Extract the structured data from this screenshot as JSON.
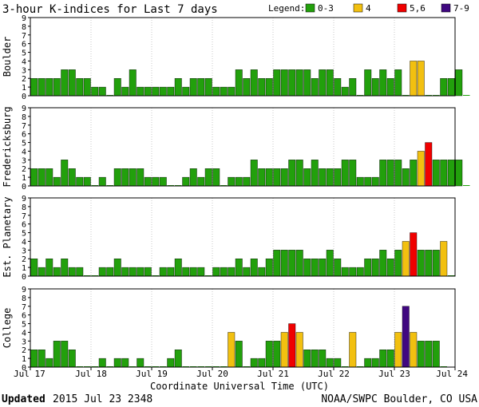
{
  "header": {
    "title": "3-hour K-indices for Last 7 days",
    "legend_label": "Legend:",
    "legend": [
      {
        "label": "0-3",
        "color": "#22a00c"
      },
      {
        "label": "4",
        "color": "#f2c010"
      },
      {
        "label": "5,6",
        "color": "#f00000"
      },
      {
        "label": "7-9",
        "color": "#400880"
      }
    ]
  },
  "footer": {
    "updated_label": "Updated",
    "updated_value": "2015 Jul 23 2348",
    "source": "NOAA/SWPC Boulder, CO USA"
  },
  "chart_data": {
    "type": "bar",
    "xlabel": "Coordinate Universal Time (UTC)",
    "x_ticks": [
      "Jul 17",
      "Jul 18",
      "Jul 19",
      "Jul 20",
      "Jul 21",
      "Jul 22",
      "Jul 23",
      "Jul 24"
    ],
    "y_ticks": [
      "0",
      "1",
      "2",
      "3",
      "4",
      "5",
      "6",
      "7",
      "8",
      "9"
    ],
    "ylim": [
      0,
      9
    ],
    "bars_per_day": 8,
    "color_rule": {
      "0-3": "#22a00c",
      "4": "#f2c010",
      "5,6": "#f00000",
      "7-9": "#400880"
    },
    "panels": [
      {
        "name": "Boulder",
        "values": [
          2,
          2,
          2,
          2,
          3,
          3,
          2,
          2,
          1,
          1,
          0,
          2,
          1,
          3,
          1,
          1,
          1,
          1,
          1,
          2,
          1,
          2,
          2,
          2,
          1,
          1,
          1,
          3,
          2,
          3,
          2,
          2,
          3,
          3,
          3,
          3,
          3,
          2,
          3,
          3,
          2,
          1,
          2,
          0,
          3,
          2,
          3,
          2,
          3,
          0,
          4,
          4,
          0,
          0,
          2,
          2,
          3,
          0
        ]
      },
      {
        "name": "Fredericksburg",
        "values": [
          2,
          2,
          2,
          1,
          3,
          2,
          1,
          1,
          0,
          1,
          0,
          2,
          2,
          2,
          2,
          1,
          1,
          1,
          0,
          0,
          1,
          2,
          1,
          2,
          2,
          0,
          1,
          1,
          1,
          3,
          2,
          2,
          2,
          2,
          3,
          3,
          2,
          3,
          2,
          2,
          2,
          3,
          3,
          1,
          1,
          1,
          3,
          3,
          3,
          2,
          3,
          4,
          5,
          3,
          3,
          3,
          3,
          0
        ]
      },
      {
        "name": "Est. Planetary",
        "values": [
          2,
          1,
          2,
          1,
          2,
          1,
          1,
          0,
          0,
          1,
          1,
          2,
          1,
          1,
          1,
          1,
          0,
          1,
          1,
          2,
          1,
          1,
          1,
          0,
          1,
          1,
          1,
          2,
          1,
          2,
          1,
          2,
          3,
          3,
          3,
          3,
          2,
          2,
          2,
          3,
          2,
          1,
          1,
          1,
          2,
          2,
          3,
          2,
          3,
          4,
          5,
          3,
          3,
          3,
          4,
          0
        ]
      },
      {
        "name": "College",
        "values": [
          2,
          2,
          1,
          3,
          3,
          2,
          0,
          0,
          0,
          1,
          0,
          1,
          1,
          0,
          1,
          0,
          0,
          0,
          1,
          2,
          0,
          0,
          0,
          0,
          0,
          0,
          4,
          3,
          0,
          1,
          1,
          3,
          3,
          4,
          5,
          4,
          2,
          2,
          2,
          1,
          1,
          0,
          4,
          0,
          1,
          1,
          2,
          2,
          4,
          7,
          4,
          3,
          3,
          3,
          0
        ]
      }
    ]
  }
}
